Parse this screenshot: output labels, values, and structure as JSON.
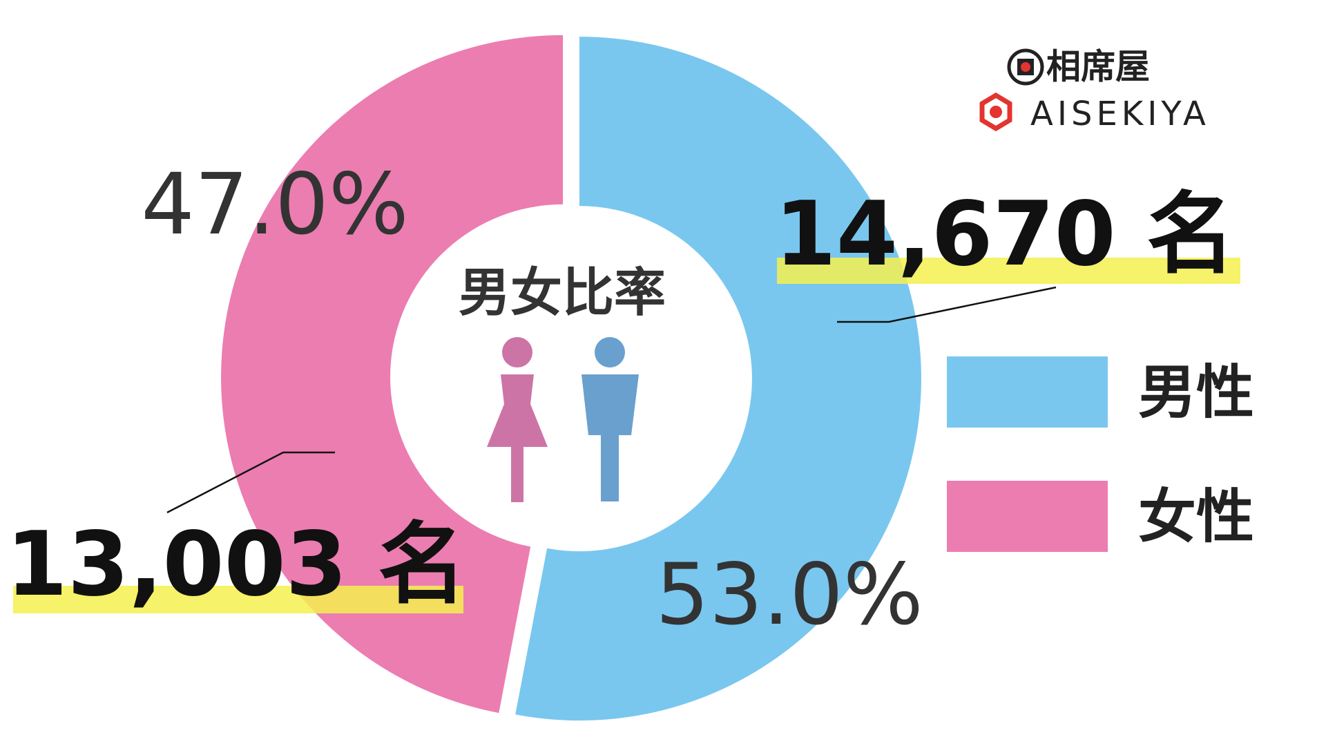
{
  "chart_data": {
    "type": "donut",
    "title": "男女比率",
    "categories": [
      "男性",
      "女性"
    ],
    "values": [
      53.0,
      47.0
    ],
    "value_labels": [
      "53.0%",
      "47.0%"
    ],
    "counts": [
      14670,
      13003
    ],
    "count_labels": [
      "14,670 名",
      "13,003 名"
    ],
    "colors": [
      "#79c7ef",
      "#ec7db0"
    ],
    "start_angle": 0,
    "direction": "clockwise",
    "legend": "right"
  },
  "logo": {
    "kanji": "相席屋",
    "roman": "AISEKIYA"
  }
}
